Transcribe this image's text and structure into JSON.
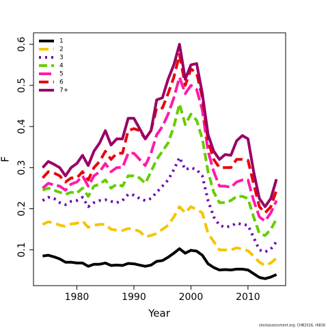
{
  "chart_data": {
    "type": "line",
    "x_label": "Year",
    "y_label": "F",
    "caption": "stockassessment.org, CHB2016, r6816",
    "legend": "top-left",
    "x": [
      1974,
      1975,
      1976,
      1977,
      1978,
      1979,
      1980,
      1981,
      1982,
      1983,
      1984,
      1985,
      1986,
      1987,
      1988,
      1989,
      1990,
      1991,
      1992,
      1993,
      1994,
      1995,
      1996,
      1997,
      1998,
      1999,
      2000,
      2001,
      2002,
      2003,
      2004,
      2005,
      2006,
      2007,
      2008,
      2009,
      2010,
      2011,
      2012,
      2013,
      2014,
      2015
    ],
    "xlim": [
      1972.4,
      2016.6
    ],
    "xticks": [
      1980,
      1990,
      2000,
      2010
    ],
    "ylim": [
      0.013,
      0.628
    ],
    "yticks": [
      0.1,
      0.2,
      0.3,
      0.4,
      0.5,
      0.6
    ],
    "series": [
      {
        "name": "1",
        "color": "#000000",
        "linestyle": "solid",
        "values": [
          0.085,
          0.087,
          0.083,
          0.078,
          0.07,
          0.07,
          0.068,
          0.068,
          0.06,
          0.065,
          0.065,
          0.068,
          0.062,
          0.063,
          0.062,
          0.067,
          0.066,
          0.063,
          0.06,
          0.063,
          0.072,
          0.074,
          0.082,
          0.092,
          0.103,
          0.092,
          0.099,
          0.097,
          0.087,
          0.066,
          0.057,
          0.051,
          0.052,
          0.051,
          0.053,
          0.053,
          0.051,
          0.042,
          0.033,
          0.03,
          0.034,
          0.04
        ]
      },
      {
        "name": "2",
        "color": "#f5c400",
        "linestyle": "dashed",
        "values": [
          0.162,
          0.168,
          0.166,
          0.16,
          0.157,
          0.163,
          0.165,
          0.17,
          0.155,
          0.16,
          0.162,
          0.162,
          0.15,
          0.148,
          0.147,
          0.152,
          0.15,
          0.145,
          0.132,
          0.135,
          0.14,
          0.15,
          0.16,
          0.18,
          0.205,
          0.19,
          0.205,
          0.198,
          0.19,
          0.14,
          0.12,
          0.1,
          0.1,
          0.1,
          0.105,
          0.102,
          0.098,
          0.085,
          0.07,
          0.062,
          0.068,
          0.08
        ]
      },
      {
        "name": "3",
        "color": "#6a0dad",
        "linestyle": "dotted",
        "values": [
          0.22,
          0.228,
          0.225,
          0.215,
          0.21,
          0.218,
          0.22,
          0.228,
          0.205,
          0.215,
          0.22,
          0.222,
          0.218,
          0.215,
          0.22,
          0.235,
          0.233,
          0.225,
          0.22,
          0.225,
          0.24,
          0.255,
          0.27,
          0.295,
          0.325,
          0.295,
          0.3,
          0.295,
          0.28,
          0.22,
          0.18,
          0.16,
          0.155,
          0.158,
          0.165,
          0.162,
          0.16,
          0.13,
          0.1,
          0.095,
          0.102,
          0.12
        ]
      },
      {
        "name": "4",
        "color": "#66cc00",
        "linestyle": "dashdot",
        "values": [
          0.245,
          0.25,
          0.245,
          0.24,
          0.235,
          0.24,
          0.238,
          0.25,
          0.23,
          0.255,
          0.26,
          0.27,
          0.25,
          0.26,
          0.255,
          0.28,
          0.28,
          0.275,
          0.262,
          0.29,
          0.32,
          0.34,
          0.36,
          0.4,
          0.455,
          0.405,
          0.43,
          0.415,
          0.37,
          0.29,
          0.24,
          0.215,
          0.215,
          0.22,
          0.23,
          0.23,
          0.225,
          0.18,
          0.14,
          0.135,
          0.15,
          0.175
        ]
      },
      {
        "name": "5",
        "color": "#ff1aa8",
        "linestyle": "longdash",
        "values": [
          0.25,
          0.262,
          0.258,
          0.255,
          0.245,
          0.26,
          0.265,
          0.28,
          0.255,
          0.28,
          0.29,
          0.31,
          0.29,
          0.3,
          0.3,
          0.335,
          0.335,
          0.32,
          0.305,
          0.335,
          0.38,
          0.4,
          0.43,
          0.47,
          0.52,
          0.48,
          0.5,
          0.49,
          0.44,
          0.34,
          0.29,
          0.255,
          0.255,
          0.252,
          0.265,
          0.27,
          0.27,
          0.22,
          0.18,
          0.17,
          0.19,
          0.22
        ]
      },
      {
        "name": "6",
        "color": "#e8000b",
        "linestyle": "dashed",
        "values": [
          0.275,
          0.29,
          0.287,
          0.28,
          0.265,
          0.275,
          0.275,
          0.29,
          0.27,
          0.3,
          0.315,
          0.34,
          0.32,
          0.335,
          0.335,
          0.39,
          0.395,
          0.39,
          0.37,
          0.39,
          0.445,
          0.445,
          0.48,
          0.52,
          0.575,
          0.5,
          0.54,
          0.53,
          0.47,
          0.365,
          0.32,
          0.3,
          0.3,
          0.3,
          0.32,
          0.32,
          0.318,
          0.26,
          0.205,
          0.19,
          0.205,
          0.245
        ]
      },
      {
        "name": "7+",
        "color": "#990066",
        "linestyle": "solid",
        "values": [
          0.3,
          0.315,
          0.308,
          0.3,
          0.28,
          0.3,
          0.31,
          0.33,
          0.305,
          0.34,
          0.36,
          0.39,
          0.355,
          0.37,
          0.37,
          0.42,
          0.42,
          0.395,
          0.37,
          0.39,
          0.465,
          0.47,
          0.515,
          0.55,
          0.6,
          0.515,
          0.55,
          0.553,
          0.48,
          0.38,
          0.34,
          0.32,
          0.332,
          0.33,
          0.365,
          0.378,
          0.37,
          0.29,
          0.225,
          0.205,
          0.225,
          0.272
        ]
      }
    ]
  }
}
